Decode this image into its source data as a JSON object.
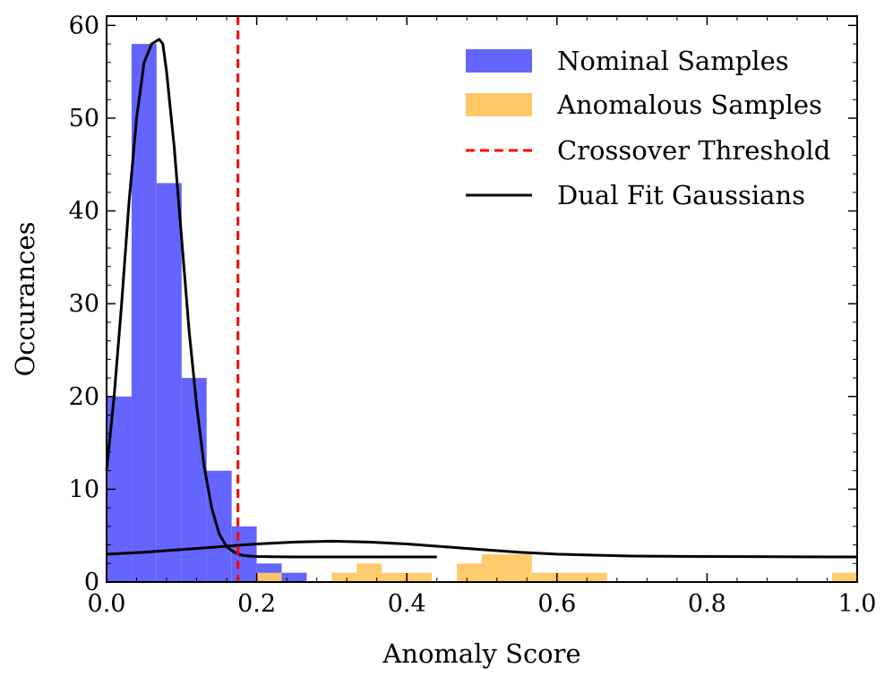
{
  "chart_data": {
    "type": "bar",
    "title": "",
    "xlabel": "Anomaly Score",
    "ylabel": "Occurances",
    "xlim": [
      0.0,
      1.0
    ],
    "ylim": [
      0,
      61
    ],
    "xticks": [
      0.0,
      0.2,
      0.4,
      0.6,
      0.8,
      1.0
    ],
    "xtick_labels": [
      "0.0",
      "0.2",
      "0.4",
      "0.6",
      "0.8",
      "1.0"
    ],
    "yticks": [
      0,
      10,
      20,
      30,
      40,
      50,
      60
    ],
    "ytick_labels": [
      "0",
      "10",
      "20",
      "30",
      "40",
      "50",
      "60"
    ],
    "grid": false,
    "legend_position": "top-right",
    "series": [
      {
        "name": "Nominal Samples",
        "kind": "histogram",
        "color": "#6464ff",
        "bin_width": 0.0333,
        "bins": [
          {
            "x0": 0.0,
            "count": 20
          },
          {
            "x0": 0.0333,
            "count": 58
          },
          {
            "x0": 0.0667,
            "count": 43
          },
          {
            "x0": 0.1,
            "count": 22
          },
          {
            "x0": 0.1333,
            "count": 12
          },
          {
            "x0": 0.1667,
            "count": 6
          },
          {
            "x0": 0.2,
            "count": 2
          },
          {
            "x0": 0.2333,
            "count": 1
          }
        ]
      },
      {
        "name": "Anomalous Samples",
        "kind": "histogram",
        "color": "#ffc864",
        "bin_width": 0.0333,
        "bins": [
          {
            "x0": 0.2,
            "count": 1
          },
          {
            "x0": 0.3,
            "count": 1
          },
          {
            "x0": 0.3333,
            "count": 2
          },
          {
            "x0": 0.3667,
            "count": 1
          },
          {
            "x0": 0.4,
            "count": 1
          },
          {
            "x0": 0.4667,
            "count": 2
          },
          {
            "x0": 0.5,
            "count": 3
          },
          {
            "x0": 0.5333,
            "count": 3
          },
          {
            "x0": 0.5667,
            "count": 1
          },
          {
            "x0": 0.6,
            "count": 1
          },
          {
            "x0": 0.6333,
            "count": 1
          },
          {
            "x0": 0.9667,
            "count": 1
          }
        ]
      },
      {
        "name": "Crossover Threshold",
        "kind": "vline",
        "color": "#ff0000",
        "x": 0.175
      },
      {
        "name": "Dual Fit Gaussians",
        "kind": "curves",
        "color": "#000000",
        "curves": [
          {
            "x": [
              0.0,
              0.01,
              0.02,
              0.03,
              0.04,
              0.05,
              0.06,
              0.07,
              0.075,
              0.08,
              0.09,
              0.1,
              0.11,
              0.12,
              0.13,
              0.14,
              0.15,
              0.16,
              0.17,
              0.18,
              0.19,
              0.2,
              0.22,
              0.25,
              0.3,
              0.35,
              0.4,
              0.44
            ],
            "y": [
              12,
              20,
              30,
              41,
              50,
              56,
              58,
              58.5,
              58,
              55,
              47,
              37,
              27,
              19,
              12.5,
              8,
              5.2,
              3.8,
              3.2,
              2.9,
              2.8,
              2.75,
              2.72,
              2.7,
              2.7,
              2.7,
              2.7,
              2.7
            ]
          },
          {
            "x": [
              0.0,
              0.05,
              0.1,
              0.15,
              0.2,
              0.25,
              0.3,
              0.35,
              0.4,
              0.45,
              0.5,
              0.55,
              0.6,
              0.65,
              0.7,
              0.8,
              0.9,
              1.0
            ],
            "y": [
              3.0,
              3.2,
              3.5,
              3.8,
              4.1,
              4.3,
              4.4,
              4.3,
              4.1,
              3.8,
              3.5,
              3.2,
              3.0,
              2.9,
              2.8,
              2.75,
              2.72,
              2.7
            ]
          }
        ]
      }
    ]
  }
}
